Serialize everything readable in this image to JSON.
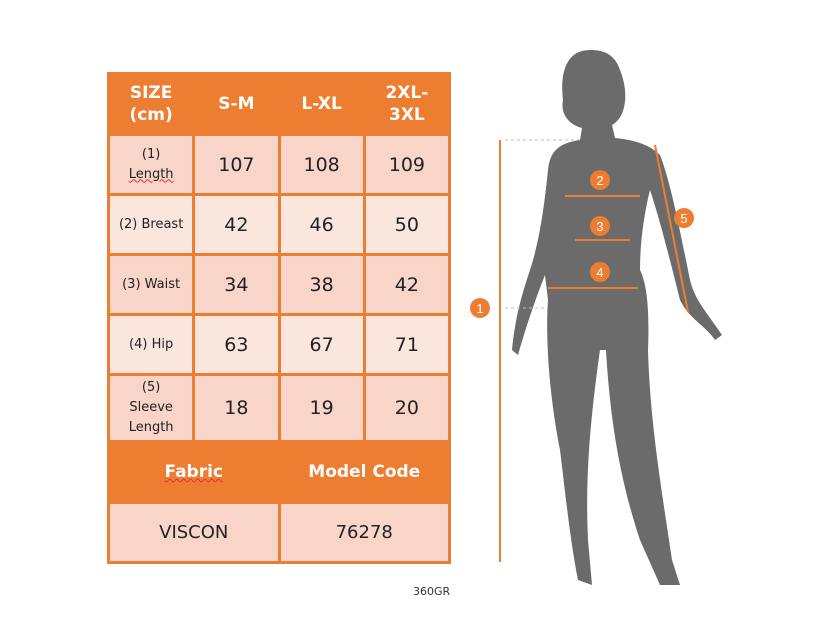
{
  "table": {
    "header": [
      "SIZE (cm)",
      "S-M",
      "L-XL",
      "2XL-3XL"
    ],
    "rows": [
      {
        "label_num": "(1)",
        "label": "Length",
        "values": [
          "107",
          "108",
          "109"
        ]
      },
      {
        "label": "(2) Breast",
        "values": [
          "42",
          "46",
          "50"
        ]
      },
      {
        "label": "(3) Waist",
        "values": [
          "34",
          "38",
          "42"
        ]
      },
      {
        "label": "(4) Hip",
        "values": [
          "63",
          "67",
          "71"
        ]
      },
      {
        "label_num": "(5)",
        "label": "Sleeve Length",
        "values": [
          "18",
          "19",
          "20"
        ]
      }
    ],
    "fabric_label": "Fabric",
    "model_code_label": "Model Code",
    "fabric_value": "VISCON",
    "model_code_value": "76278"
  },
  "footer_note": "360GR",
  "markers": [
    "1",
    "2",
    "3",
    "4",
    "5"
  ],
  "colors": {
    "accent": "#ed7d31",
    "row_dark": "#f8d5c8",
    "row_light": "#fbe6de",
    "silhouette": "#6b6b6b"
  }
}
